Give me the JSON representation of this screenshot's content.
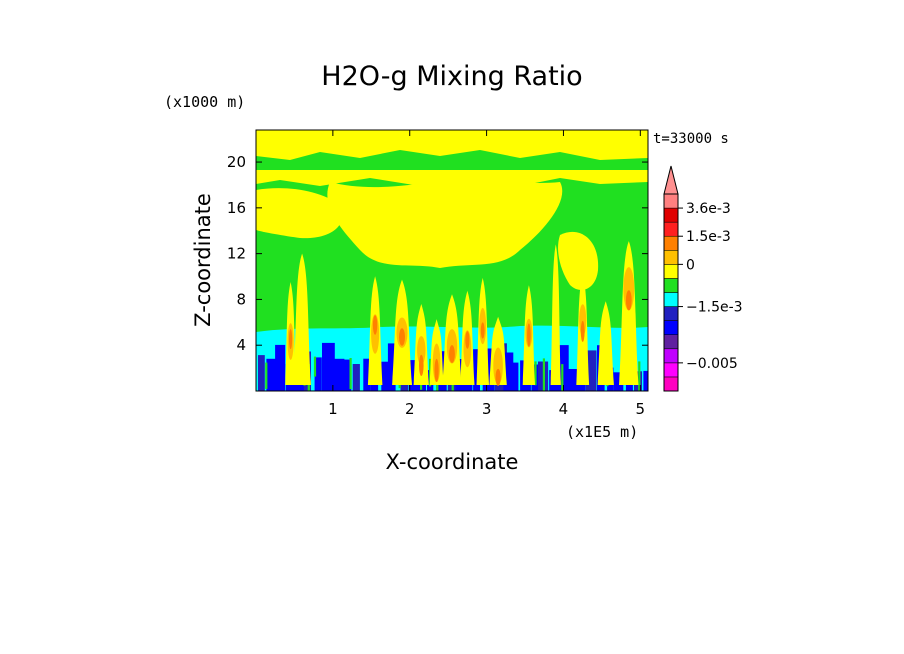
{
  "chart_data": {
    "type": "heatmap",
    "title": "H2O-g Mixing Ratio",
    "xlabel": "X-coordinate",
    "ylabel": "Z-coordinate",
    "x_unit_label": "(x1E5 m)",
    "y_unit_label": "(x1000 m)",
    "time_label": "t=33000 s",
    "xlim": [
      0,
      5.1
    ],
    "ylim": [
      0,
      22.8
    ],
    "x_ticks": [
      1,
      2,
      3,
      4,
      5
    ],
    "x_tick_labels": [
      "1",
      "2",
      "3",
      "4",
      "5"
    ],
    "y_ticks": [
      4,
      8,
      12,
      16,
      20
    ],
    "y_tick_labels": [
      "4",
      "8",
      "12",
      "16",
      "20"
    ],
    "colorbar": {
      "levels": [
        {
          "color": "#ff00c0"
        },
        {
          "color": "#ff00ff"
        },
        {
          "color": "#c000ff"
        },
        {
          "color": "#6020a0"
        },
        {
          "color": "#0000ff"
        },
        {
          "color": "#2020c0"
        },
        {
          "color": "#00ffff"
        },
        {
          "color": "#20e020"
        },
        {
          "color": "#ffff00"
        },
        {
          "color": "#ffc000"
        },
        {
          "color": "#ff8000"
        },
        {
          "color": "#ff2020"
        },
        {
          "color": "#e00000"
        },
        {
          "color": "#ff8080"
        }
      ],
      "extend_top_color": "#ff9090",
      "tick_labels": [
        {
          "label": "3.6e-3",
          "level_boundary": 13
        },
        {
          "label": "1.5e-3",
          "level_boundary": 11
        },
        {
          "label": "0",
          "level_boundary": 9
        },
        {
          "label": "−1.5e-3",
          "level_boundary": 6
        },
        {
          "label": "−0.005",
          "level_boundary": 2
        }
      ]
    },
    "field_regions": {
      "background_color": "#20e020",
      "upper_band_color": "#ffff00",
      "low_level_color": "#00ffff",
      "surface_color": "#0000ff",
      "plume_colors": [
        "#ffff00",
        "#ffc000",
        "#ff8000",
        "#ff2020"
      ]
    }
  }
}
